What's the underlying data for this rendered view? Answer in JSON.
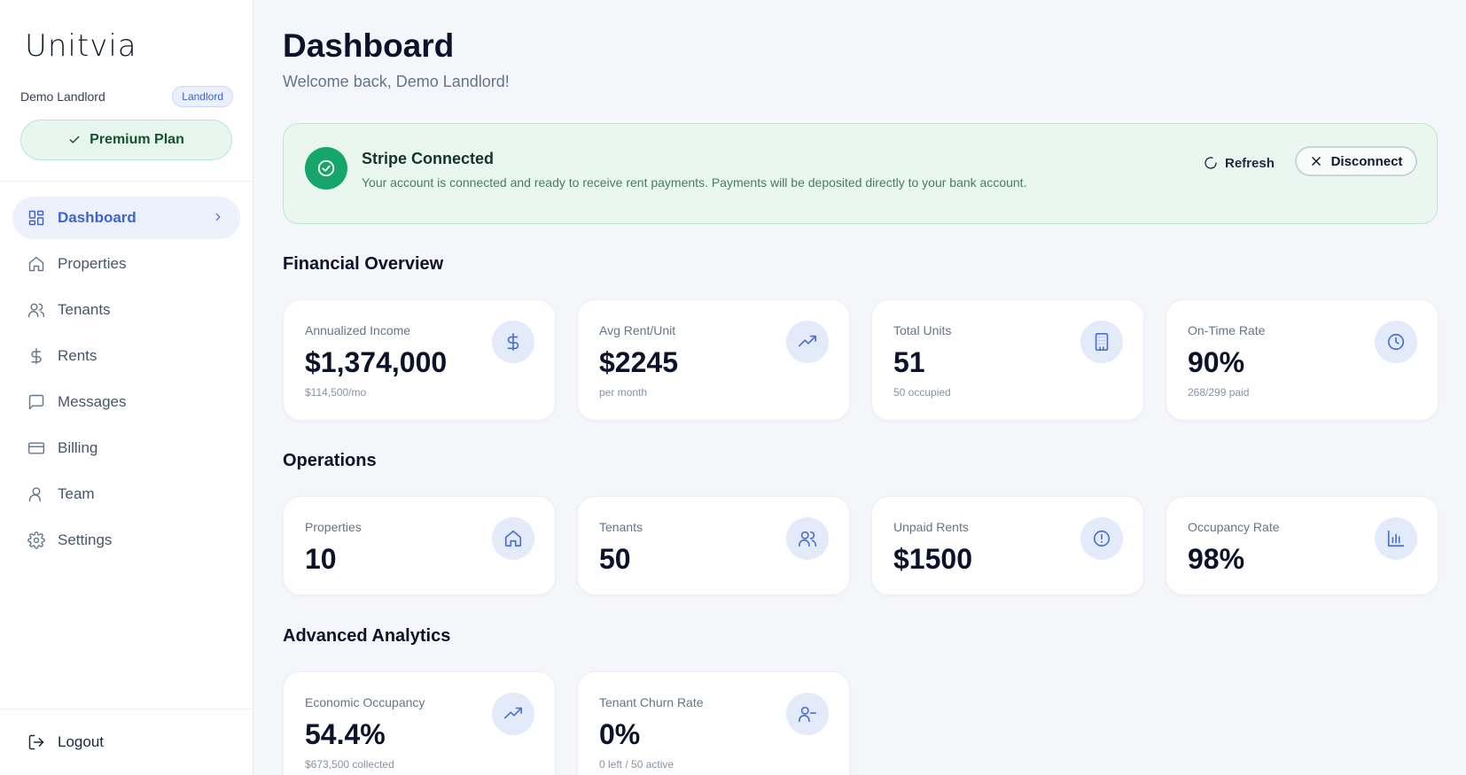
{
  "brand": {
    "logo_text": "Unitvia"
  },
  "user": {
    "name": "Demo Landlord",
    "role": "Landlord"
  },
  "plan": {
    "label": "Premium Plan"
  },
  "nav": {
    "items": [
      {
        "label": "Dashboard",
        "icon": "dashboard-grid-icon",
        "active": true
      },
      {
        "label": "Properties",
        "icon": "home-icon"
      },
      {
        "label": "Tenants",
        "icon": "users-icon"
      },
      {
        "label": "Rents",
        "icon": "dollar-icon"
      },
      {
        "label": "Messages",
        "icon": "message-icon"
      },
      {
        "label": "Billing",
        "icon": "credit-card-icon"
      },
      {
        "label": "Team",
        "icon": "user-icon"
      },
      {
        "label": "Settings",
        "icon": "gear-icon"
      }
    ],
    "logout": "Logout"
  },
  "header": {
    "title": "Dashboard",
    "subtitle": "Welcome back, Demo Landlord!"
  },
  "stripe": {
    "title": "Stripe Connected",
    "description": "Your account is connected and ready to receive rent payments. Payments will be deposited directly to your bank account.",
    "refresh_label": "Refresh",
    "disconnect_label": "Disconnect"
  },
  "sections": {
    "financial": "Financial Overview",
    "operations": "Operations",
    "analytics": "Advanced Analytics"
  },
  "financial_cards": [
    {
      "label": "Annualized Income",
      "value": "$1,374,000",
      "sub": "$114,500/mo",
      "icon": "dollar-icon"
    },
    {
      "label": "Avg Rent/Unit",
      "value": "$2245",
      "sub": "per month",
      "icon": "trending-up-icon"
    },
    {
      "label": "Total Units",
      "value": "51",
      "sub": "50 occupied",
      "icon": "building-icon"
    },
    {
      "label": "On-Time Rate",
      "value": "90%",
      "sub": "268/299 paid",
      "icon": "clock-icon"
    }
  ],
  "operations_cards": [
    {
      "label": "Properties",
      "value": "10",
      "icon": "home-icon"
    },
    {
      "label": "Tenants",
      "value": "50",
      "icon": "users-icon"
    },
    {
      "label": "Unpaid Rents",
      "value": "$1500",
      "icon": "alert-circle-icon"
    },
    {
      "label": "Occupancy Rate",
      "value": "98%",
      "icon": "bar-chart-icon"
    }
  ],
  "analytics_cards": [
    {
      "label": "Economic Occupancy",
      "value": "54.4%",
      "sub": "$673,500 collected",
      "icon": "trending-up-icon"
    },
    {
      "label": "Tenant Churn Rate",
      "value": "0%",
      "sub": "0 left / 50 active",
      "icon": "user-minus-icon"
    }
  ],
  "colors": {
    "accent": "#3f63c9",
    "success": "#16a56a",
    "icon_bg": "#e3eaf9"
  }
}
